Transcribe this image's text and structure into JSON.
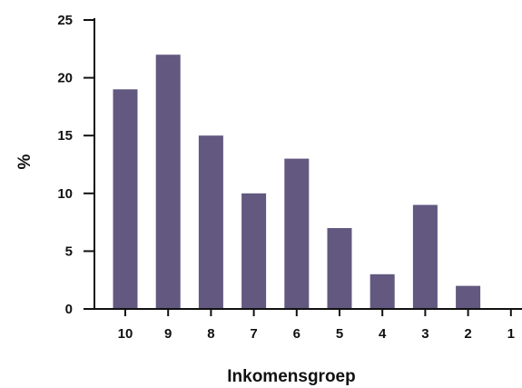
{
  "chart_data": {
    "type": "bar",
    "categories": [
      "10",
      "9",
      "8",
      "7",
      "6",
      "5",
      "4",
      "3",
      "2",
      "1"
    ],
    "values": [
      19,
      22,
      15,
      10,
      13,
      7,
      3,
      9,
      2,
      0
    ],
    "title": "",
    "xlabel": "Inkomensgroep",
    "ylabel": "%",
    "ylim": [
      0,
      25
    ],
    "yticks": [
      0,
      5,
      10,
      15,
      20,
      25
    ],
    "grid": false,
    "bar_color": "#625880",
    "axis_color": "#111111"
  }
}
